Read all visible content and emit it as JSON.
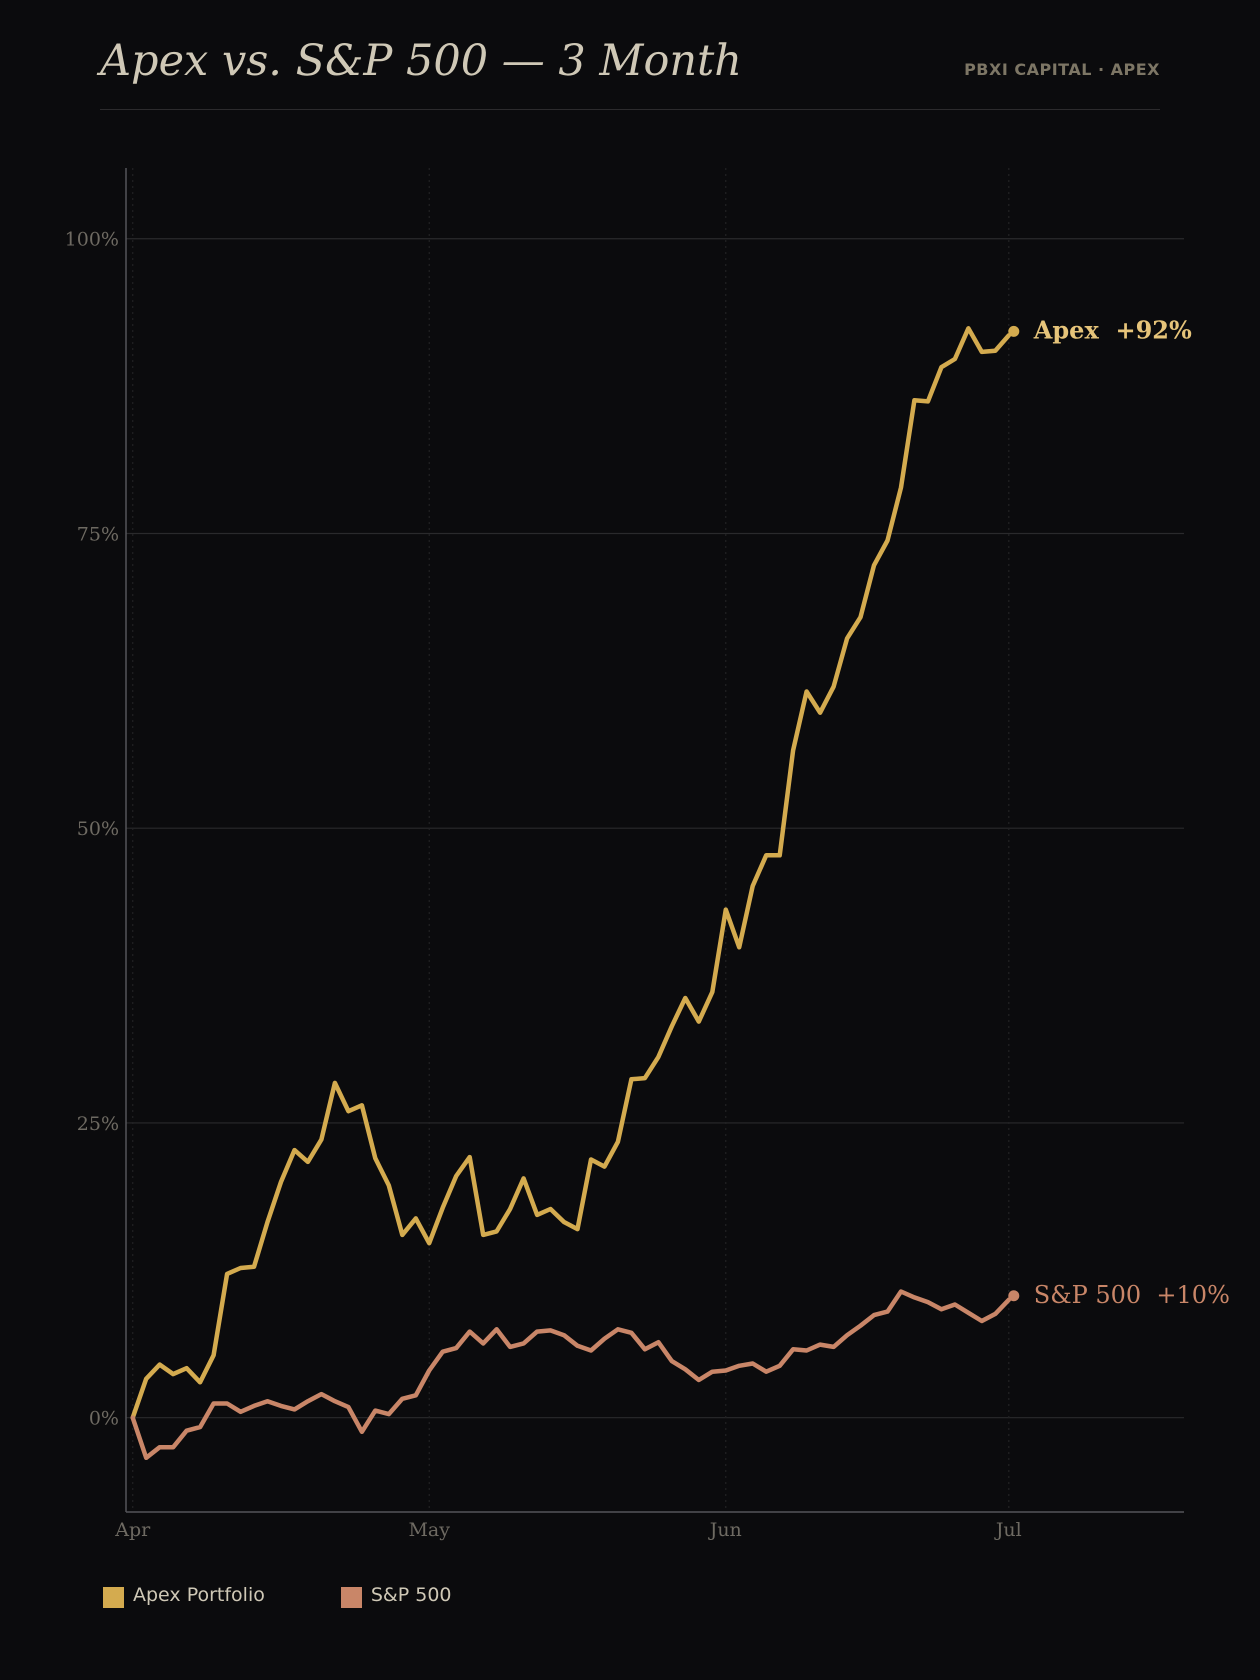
{
  "header": {
    "title": "Apex vs. S&P 500 — 3 Month",
    "brand": "PBXI CAPITAL · APEX"
  },
  "colors": {
    "background": "#0b0b0d",
    "apex": "#d4ab4f",
    "sp500": "#c98668",
    "grid": "#2a2a2c",
    "axis": "#55555a",
    "tick_text": "#6e6a62"
  },
  "legend": {
    "items": [
      {
        "label": "Apex Portfolio",
        "color": "#d4ab4f"
      },
      {
        "label": "S&P 500",
        "color": "#c98668"
      }
    ]
  },
  "chart_data": {
    "type": "line",
    "title": "Apex vs. S&P 500 — 3 Month",
    "xlabel": "",
    "ylabel": "",
    "ylim": [
      -8,
      106
    ],
    "yticks": [
      0,
      25,
      50,
      75,
      100
    ],
    "ytick_labels": [
      "0%",
      "25%",
      "50%",
      "75%",
      "100%"
    ],
    "xticks": [
      0,
      22,
      44,
      65
    ],
    "xtick_labels": [
      "Apr",
      "May",
      "Jun",
      "Jul"
    ],
    "xlim": [
      -0.5,
      78
    ],
    "grid": true,
    "legend_position": "bottom-left",
    "series": [
      {
        "name": "Apex",
        "end_label": "Apex  +92%",
        "values": [
          0,
          3.3,
          4.5,
          3.7,
          4.2,
          3.0,
          5.3,
          12.2,
          12.7,
          12.8,
          16.6,
          20.0,
          22.7,
          21.7,
          23.6,
          28.4,
          26.0,
          26.5,
          22.0,
          19.7,
          15.5,
          16.9,
          14.8,
          17.8,
          20.5,
          22.1,
          15.5,
          15.8,
          17.7,
          20.3,
          17.2,
          17.7,
          16.6,
          16.0,
          21.9,
          21.3,
          23.4,
          28.7,
          28.8,
          30.6,
          33.2,
          35.6,
          33.6,
          36.1,
          43.1,
          39.9,
          45.1,
          47.7,
          47.7,
          56.6,
          61.6,
          59.8,
          62.0,
          66.1,
          67.9,
          72.3,
          74.4,
          78.9,
          86.3,
          86.2,
          89.1,
          89.8,
          92.4,
          90.4,
          90.5,
          91.8
        ]
      },
      {
        "name": "S&P 500",
        "end_label": "S&P 500  +10%",
        "values": [
          0,
          -3.4,
          -2.5,
          -2.5,
          -1.1,
          -0.8,
          1.2,
          1.2,
          0.5,
          1.0,
          1.4,
          1.0,
          0.7,
          1.4,
          2.0,
          1.4,
          0.9,
          -1.2,
          0.6,
          0.3,
          1.6,
          1.9,
          4.0,
          5.6,
          5.9,
          7.3,
          6.3,
          7.5,
          6.0,
          6.3,
          7.3,
          7.4,
          7.0,
          6.1,
          5.7,
          6.7,
          7.5,
          7.2,
          5.8,
          6.4,
          4.8,
          4.1,
          3.2,
          3.9,
          4.0,
          4.4,
          4.6,
          3.9,
          4.4,
          5.8,
          5.7,
          6.2,
          6.0,
          7.0,
          7.8,
          8.7,
          9.0,
          10.7,
          10.2,
          9.8,
          9.2,
          9.6,
          8.9,
          8.2,
          8.8,
          10.0
        ]
      }
    ]
  }
}
